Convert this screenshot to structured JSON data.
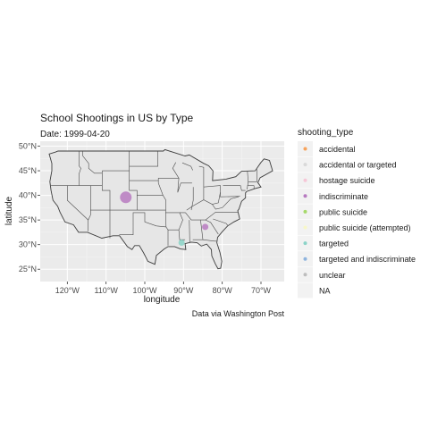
{
  "chart_data": {
    "type": "scatter",
    "title": "School Shootings in US by Type",
    "subtitle": "Date: 1999-04-20",
    "xlabel": "longitude",
    "ylabel": "latitude",
    "caption": "Data via Washington Post",
    "xlim": [
      -127,
      -64
    ],
    "ylim": [
      22.5,
      51
    ],
    "x_ticks": [
      {
        "value": -120,
        "label": "120°W"
      },
      {
        "value": -110,
        "label": "110°W"
      },
      {
        "value": -100,
        "label": "100°W"
      },
      {
        "value": -90,
        "label": "90°W"
      },
      {
        "value": -80,
        "label": "80°W"
      },
      {
        "value": -70,
        "label": "70°W"
      }
    ],
    "y_ticks": [
      {
        "value": 25,
        "label": "25°N"
      },
      {
        "value": 30,
        "label": "30°N"
      },
      {
        "value": 35,
        "label": "35°N"
      },
      {
        "value": 40,
        "label": "40°N"
      },
      {
        "value": 45,
        "label": "45°N"
      },
      {
        "value": 50,
        "label": "50°N"
      }
    ],
    "grid": true,
    "legend_position": "right",
    "legend_title": "shooting_type",
    "legend": [
      {
        "label": "accidental",
        "color": "#f7a35c"
      },
      {
        "label": "accidental or targeted",
        "color": "#d9d9d9"
      },
      {
        "label": "hostage suicide",
        "color": "#f6c7d7"
      },
      {
        "label": "indiscriminate",
        "color": "#b77ac0"
      },
      {
        "label": "public suicide",
        "color": "#a6d96a"
      },
      {
        "label": "public suicide (attempted)",
        "color": "#f7f7c8"
      },
      {
        "label": "targeted",
        "color": "#8bd3c7"
      },
      {
        "label": "targeted and indiscriminate",
        "color": "#8fb4de"
      },
      {
        "label": "unclear",
        "color": "#bdbdbd"
      },
      {
        "label": "NA",
        "color": ""
      }
    ],
    "points": [
      {
        "lon": -104.9,
        "lat": 39.6,
        "type": "indiscriminate",
        "color": "#b77ac0",
        "size": "large"
      },
      {
        "lon": -84.4,
        "lat": 33.6,
        "type": "indiscriminate",
        "color": "#b77ac0",
        "size": "small"
      },
      {
        "lon": -90.5,
        "lat": 30.4,
        "type": "targeted",
        "color": "#8bd3c7",
        "size": "small"
      }
    ]
  }
}
